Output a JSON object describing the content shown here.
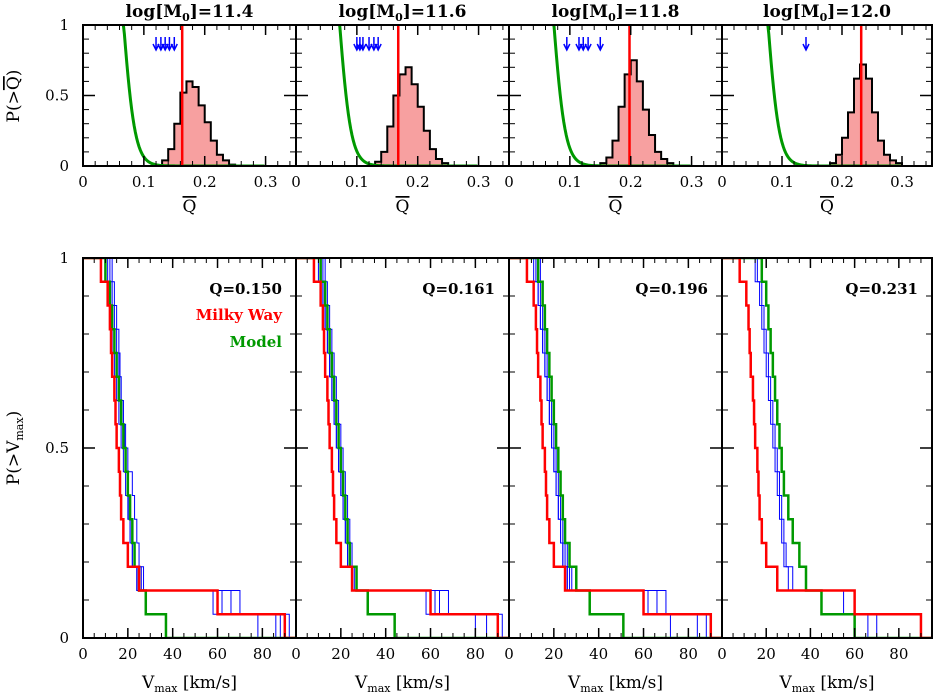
{
  "chart_data": [
    {
      "type": "histogram",
      "row": "top",
      "title": "log[M0]=11.4",
      "title_base": "log[M",
      "title_sub": "0",
      "title_end": "]=11.4",
      "xlim": [
        0,
        0.35
      ],
      "ylim": [
        0,
        1
      ],
      "xticks": [
        0,
        0.1,
        0.2,
        0.3
      ],
      "xtick_labels": [
        "0",
        "0.1",
        "0.2",
        "0.3"
      ],
      "yticks": [
        0,
        0.5,
        1
      ],
      "ytick_labels": [
        "0",
        "0.5",
        "1"
      ],
      "bin_edges": [
        0.13,
        0.14,
        0.15,
        0.16,
        0.17,
        0.18,
        0.19,
        0.2,
        0.21,
        0.22,
        0.23,
        0.24,
        0.25,
        0.26
      ],
      "bin_values": [
        0.04,
        0.12,
        0.3,
        0.52,
        0.6,
        0.56,
        0.43,
        0.31,
        0.18,
        0.08,
        0.04,
        0.01,
        0.0
      ],
      "median_line": 0.163,
      "arrows": [
        0.12,
        0.128,
        0.135,
        0.142,
        0.15
      ],
      "model_curve": {
        "x0": 0.065,
        "scale": 0.022
      }
    },
    {
      "type": "histogram",
      "row": "top",
      "title": "log[M0]=11.6",
      "title_base": "log[M",
      "title_sub": "0",
      "title_end": "]=11.6",
      "xlim": [
        0,
        0.35
      ],
      "ylim": [
        0,
        1
      ],
      "xticks": [
        0,
        0.1,
        0.2,
        0.3
      ],
      "xtick_labels": [
        "0",
        "0.1",
        "0.2",
        "0.3"
      ],
      "yticks": [
        0,
        0.5,
        1
      ],
      "ytick_labels": [
        "0",
        "0.5",
        "1"
      ],
      "bin_edges": [
        0.13,
        0.14,
        0.15,
        0.16,
        0.17,
        0.18,
        0.19,
        0.2,
        0.21,
        0.22,
        0.23,
        0.24,
        0.25,
        0.26
      ],
      "bin_values": [
        0.03,
        0.1,
        0.28,
        0.5,
        0.65,
        0.7,
        0.58,
        0.42,
        0.25,
        0.12,
        0.05,
        0.02,
        0.0
      ],
      "median_line": 0.168,
      "arrows": [
        0.1,
        0.105,
        0.11,
        0.12,
        0.128,
        0.135
      ],
      "model_curve": {
        "x0": 0.07,
        "scale": 0.022
      }
    },
    {
      "type": "histogram",
      "row": "top",
      "title": "log[M0]=11.8",
      "title_base": "log[M",
      "title_sub": "0",
      "title_end": "]=11.8",
      "xlim": [
        0,
        0.35
      ],
      "ylim": [
        0,
        1
      ],
      "xticks": [
        0,
        0.1,
        0.2,
        0.3
      ],
      "xtick_labels": [
        "0",
        "0.1",
        "0.2",
        "0.3"
      ],
      "yticks": [
        0,
        0.5,
        1
      ],
      "ytick_labels": [
        "0",
        "0.5",
        "1"
      ],
      "bin_edges": [
        0.15,
        0.16,
        0.17,
        0.18,
        0.19,
        0.2,
        0.21,
        0.22,
        0.23,
        0.24,
        0.25,
        0.26,
        0.27,
        0.28
      ],
      "bin_values": [
        0.02,
        0.06,
        0.18,
        0.42,
        0.65,
        0.75,
        0.6,
        0.4,
        0.22,
        0.1,
        0.05,
        0.02,
        0.0
      ],
      "median_line": 0.198,
      "arrows": [
        0.095,
        0.115,
        0.122,
        0.13,
        0.15
      ],
      "model_curve": {
        "x0": 0.072,
        "scale": 0.022
      }
    },
    {
      "type": "histogram",
      "row": "top",
      "title": "log[M0]=12.0",
      "title_base": "log[M",
      "title_sub": "0",
      "title_end": "]=12.0",
      "xlim": [
        0,
        0.35
      ],
      "ylim": [
        0,
        1
      ],
      "xticks": [
        0,
        0.1,
        0.2,
        0.3
      ],
      "xtick_labels": [
        "0",
        "0.1",
        "0.2",
        "0.3"
      ],
      "yticks": [
        0,
        0.5,
        1
      ],
      "ytick_labels": [
        "0",
        "0.5",
        "1"
      ],
      "bin_edges": [
        0.18,
        0.19,
        0.2,
        0.21,
        0.22,
        0.23,
        0.24,
        0.25,
        0.26,
        0.27,
        0.28,
        0.29,
        0.3,
        0.31
      ],
      "bin_values": [
        0.02,
        0.08,
        0.2,
        0.38,
        0.62,
        0.72,
        0.62,
        0.38,
        0.18,
        0.08,
        0.04,
        0.02,
        0.0
      ],
      "median_line": 0.232,
      "arrows": [
        0.14
      ],
      "model_curve": {
        "x0": 0.075,
        "scale": 0.022
      }
    },
    {
      "type": "line",
      "row": "bottom",
      "q_label": "Q=0.150",
      "xlim": [
        0,
        95
      ],
      "ylim": [
        0,
        1
      ],
      "xticks": [
        0,
        20,
        40,
        60,
        80
      ],
      "xtick_labels": [
        "0",
        "20",
        "40",
        "60",
        "80"
      ],
      "yticks": [
        0,
        0.5,
        1
      ],
      "ytick_labels": [
        "0",
        "0.5",
        "1"
      ],
      "milky_way": [
        8,
        11,
        12,
        12.5,
        13,
        14,
        14.5,
        15,
        16,
        16.5,
        17,
        18,
        20,
        25,
        60,
        90
      ],
      "model": [
        10,
        12,
        13,
        14,
        15,
        16,
        17,
        18,
        19,
        20,
        21,
        22,
        23,
        25,
        28,
        37
      ],
      "realizations": [
        [
          12,
          13,
          14,
          15,
          16,
          17,
          18,
          18.5,
          19,
          20,
          21,
          22,
          23,
          24,
          58,
          78
        ],
        [
          10,
          11,
          12,
          13,
          14,
          15,
          16,
          17,
          18,
          19,
          20,
          21,
          22,
          26,
          66,
          86
        ],
        [
          13,
          14,
          15,
          16,
          16.5,
          17,
          18,
          19,
          20,
          22,
          23,
          24,
          25,
          27,
          62,
          92
        ],
        [
          11,
          12,
          13,
          14,
          15,
          16,
          17,
          18,
          19,
          20,
          20.5,
          21,
          22,
          24,
          70,
          88
        ]
      ],
      "legend": [
        "Milky Way",
        "Model"
      ]
    },
    {
      "type": "line",
      "row": "bottom",
      "q_label": "Q=0.161",
      "xlim": [
        0,
        95
      ],
      "ylim": [
        0,
        1
      ],
      "xticks": [
        0,
        20,
        40,
        60,
        80
      ],
      "xtick_labels": [
        "0",
        "20",
        "40",
        "60",
        "80"
      ],
      "yticks": [
        0,
        0.5,
        1
      ],
      "ytick_labels": [
        "0",
        "0.5",
        "1"
      ],
      "milky_way": [
        8,
        11,
        12,
        12.5,
        13,
        14,
        14.5,
        15,
        16,
        16.5,
        17,
        18,
        20,
        25,
        60,
        90
      ],
      "model": [
        11,
        13,
        14,
        15,
        16,
        17,
        18,
        19,
        20,
        21,
        22,
        23,
        24,
        27,
        32,
        44
      ],
      "realizations": [
        [
          12,
          13,
          14,
          15,
          16,
          17,
          18,
          19,
          20,
          21,
          22,
          23,
          24,
          25,
          58,
          80
        ],
        [
          10,
          12,
          13,
          14,
          15,
          16,
          17,
          18,
          19,
          20,
          21,
          22,
          23,
          26,
          64,
          90
        ],
        [
          13,
          14,
          15,
          16,
          17,
          18,
          19,
          20,
          21,
          22,
          23,
          24,
          25,
          27,
          62,
          85
        ],
        [
          11,
          12,
          13,
          14,
          15,
          16,
          17,
          18,
          19,
          20,
          21,
          22,
          23,
          25,
          68,
          92
        ]
      ],
      "legend": []
    },
    {
      "type": "line",
      "row": "bottom",
      "q_label": "Q=0.196",
      "xlim": [
        0,
        95
      ],
      "ylim": [
        0,
        1
      ],
      "xticks": [
        0,
        20,
        40,
        60,
        80
      ],
      "xtick_labels": [
        "0",
        "20",
        "40",
        "60",
        "80"
      ],
      "yticks": [
        0,
        0.5,
        1
      ],
      "ytick_labels": [
        "0",
        "0.5",
        "1"
      ],
      "milky_way": [
        8,
        11,
        12,
        12.5,
        13,
        14,
        14.5,
        15,
        16,
        16.5,
        17,
        18,
        20,
        25,
        60,
        90
      ],
      "model": [
        13,
        15,
        16,
        17,
        18,
        19,
        20,
        21,
        22,
        23,
        24,
        25,
        27,
        30,
        36,
        51
      ],
      "realizations": [
        [
          13,
          14,
          15,
          16,
          17,
          18,
          19,
          20,
          21,
          22,
          23,
          24,
          25,
          26,
          60,
          72
        ],
        [
          12,
          13,
          14,
          15,
          16,
          17,
          18,
          19,
          20,
          21,
          22,
          23,
          24,
          27,
          66,
          88
        ],
        [
          14,
          15,
          16,
          17,
          18,
          19,
          20,
          21,
          22,
          23,
          24,
          25,
          26,
          28,
          62,
          84
        ],
        [
          11,
          13,
          14,
          15,
          16,
          17,
          18,
          19,
          20,
          21,
          22,
          23,
          24,
          26,
          70,
          90
        ]
      ],
      "legend": []
    },
    {
      "type": "line",
      "row": "bottom",
      "q_label": "Q=0.231",
      "xlim": [
        0,
        95
      ],
      "ylim": [
        0,
        1
      ],
      "xticks": [
        0,
        20,
        40,
        60,
        80
      ],
      "xtick_labels": [
        "0",
        "20",
        "40",
        "60",
        "80"
      ],
      "yticks": [
        0,
        0.5,
        1
      ],
      "ytick_labels": [
        "0",
        "0.5",
        "1"
      ],
      "milky_way": [
        8,
        11,
        12,
        12.5,
        13,
        14,
        14.5,
        15,
        16,
        16.5,
        17,
        18,
        20,
        25,
        60,
        90
      ],
      "model": [
        18,
        20,
        21,
        22,
        23,
        24,
        25,
        26,
        27,
        28,
        30,
        32,
        35,
        38,
        45,
        60
      ],
      "realizations": [
        [
          15,
          17,
          18,
          19,
          20,
          21,
          22,
          23,
          24,
          25,
          26,
          27,
          28,
          30,
          55,
          66
        ],
        [
          16,
          18,
          19,
          20,
          21,
          22,
          23,
          24,
          25,
          26,
          27,
          28,
          29,
          32,
          60,
          70
        ]
      ],
      "legend": []
    }
  ],
  "labels": {
    "top_xlabel": "Q",
    "top_ylabel_pre": "P(>",
    "top_ylabel_var": "Q",
    "top_ylabel_post": ")",
    "bottom_xlabel_main": "V",
    "bottom_xlabel_sub": "max",
    "bottom_xlabel_units": " [km/s]",
    "bottom_ylabel_pre": "P(>V",
    "bottom_ylabel_sub": "max",
    "bottom_ylabel_post": ")"
  },
  "colors": {
    "milky_way": "#ff0000",
    "model": "#009900",
    "realization": "#0000ff",
    "histogram_fill": "#f7a0a0",
    "median": "#ff0000",
    "arrow": "#0000ff"
  }
}
